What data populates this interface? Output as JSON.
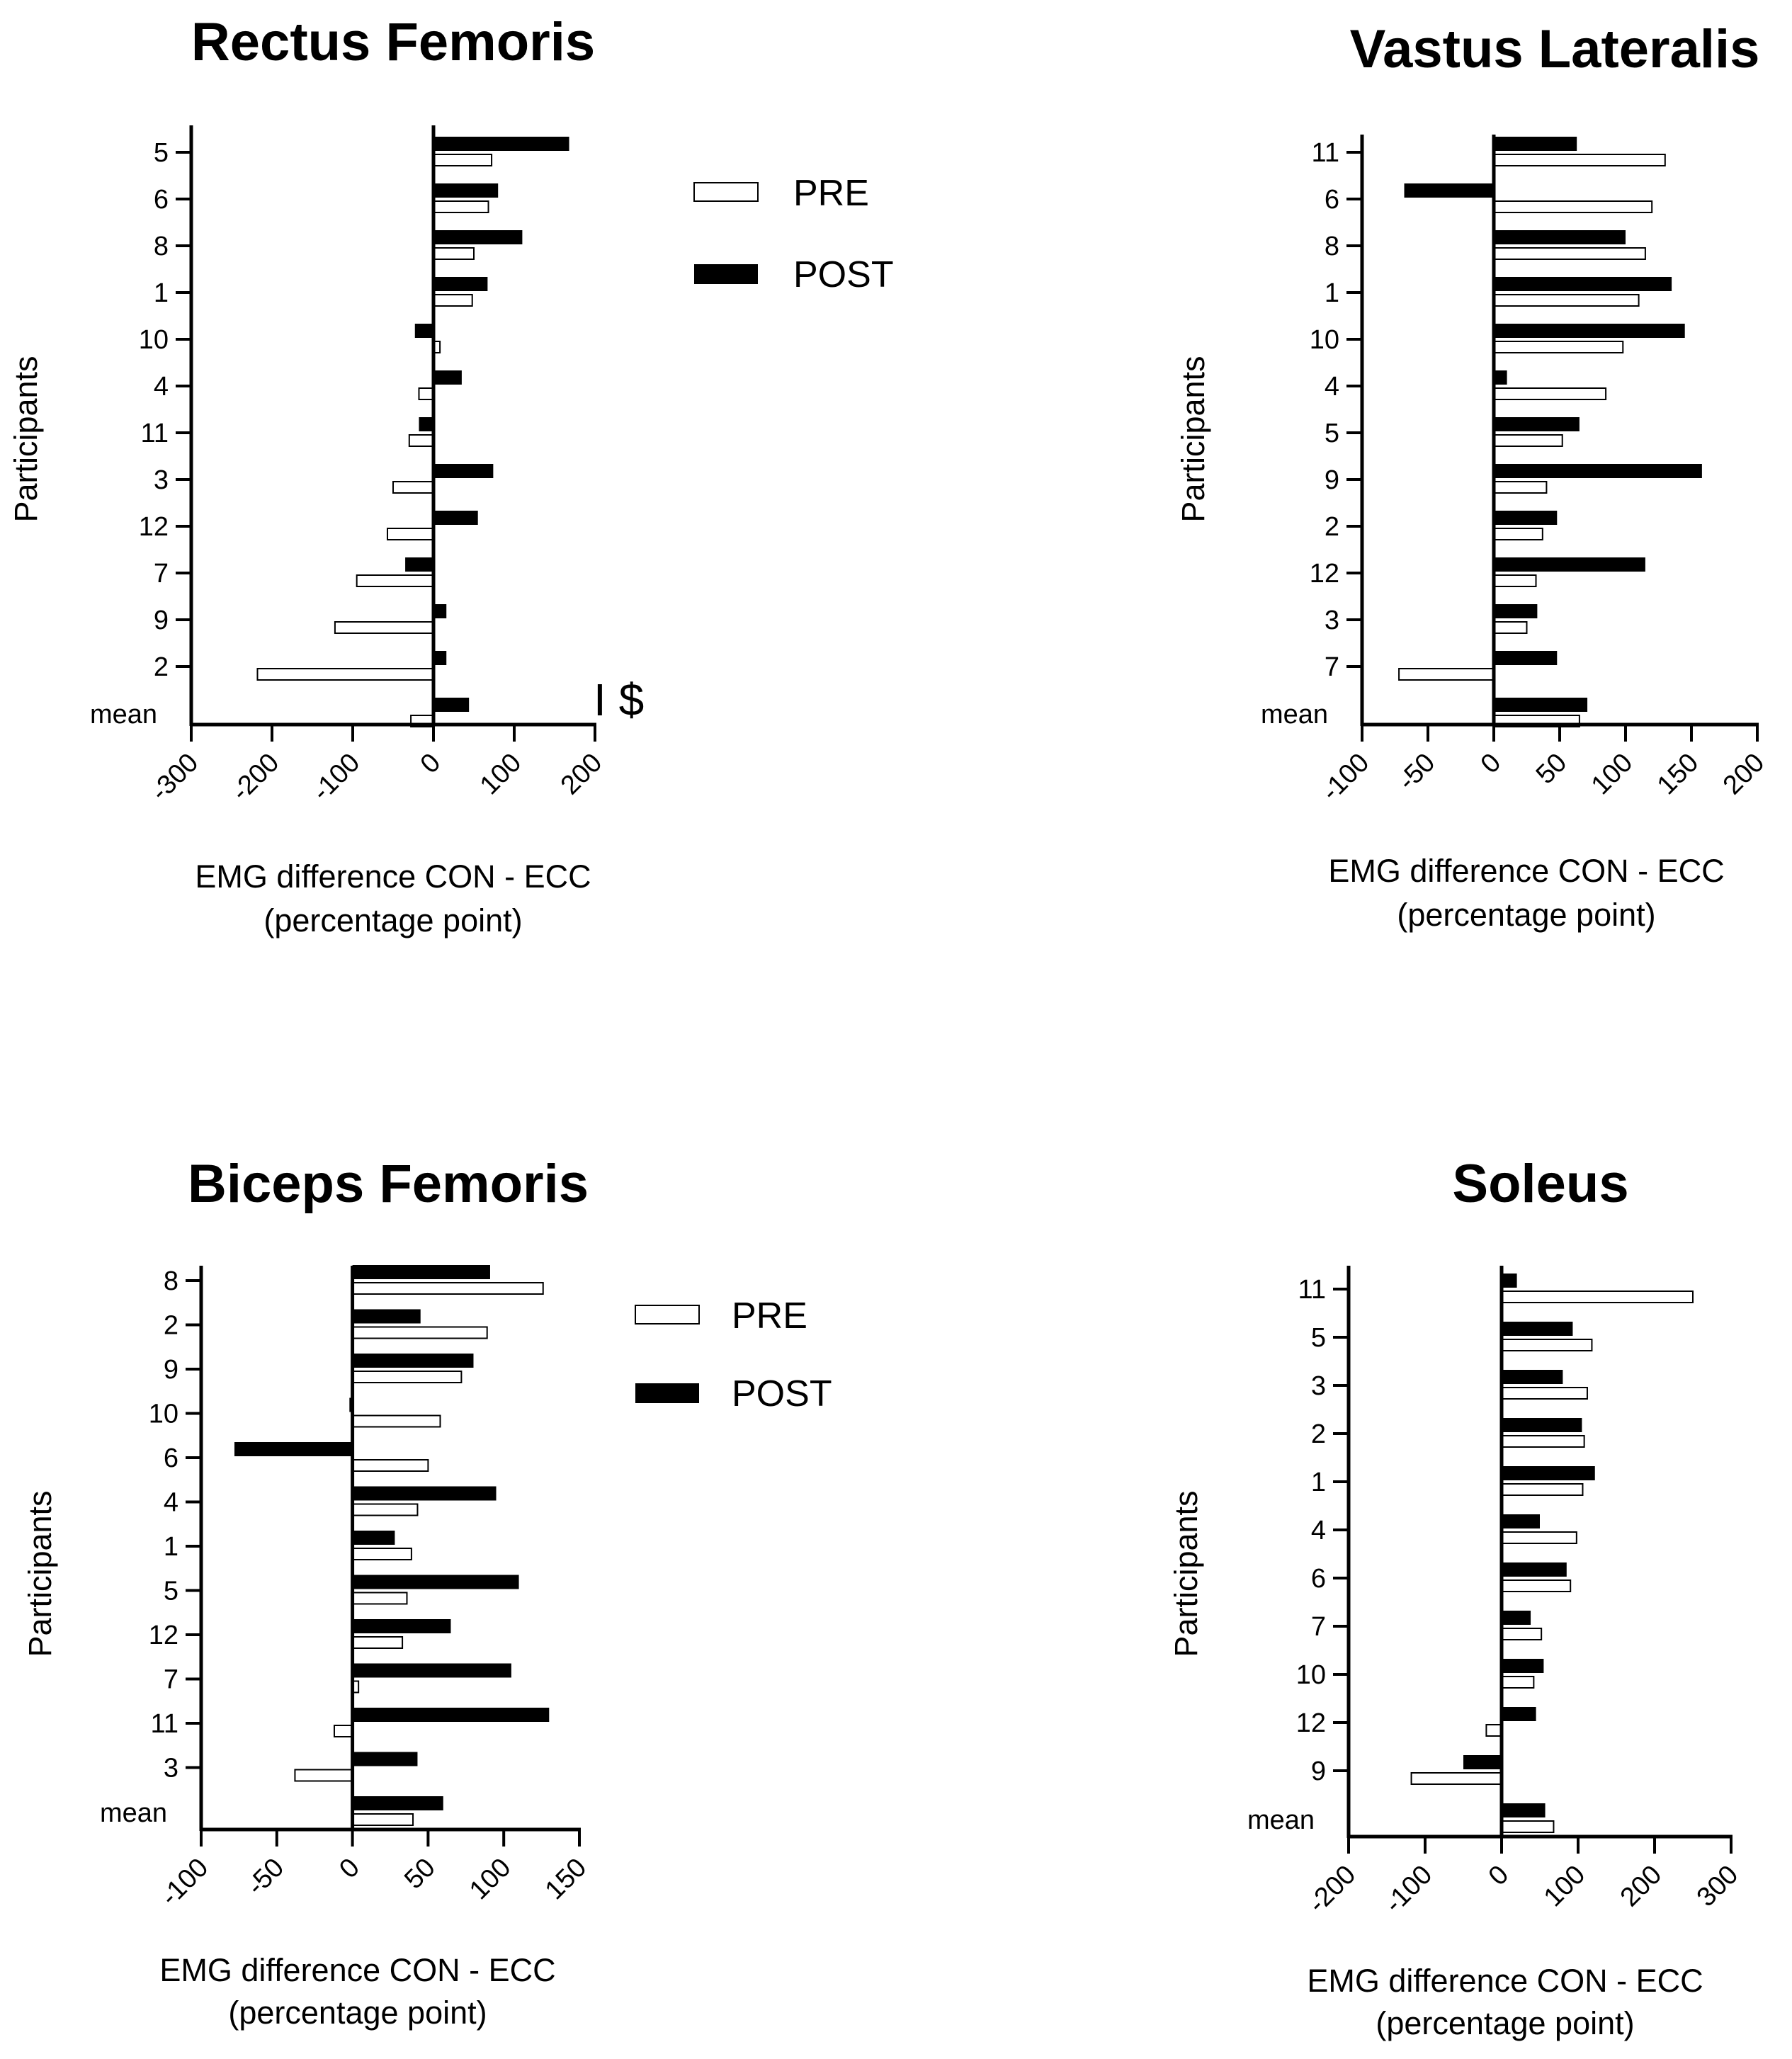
{
  "legend": {
    "pre": "PRE",
    "post": "POST"
  },
  "colors": {
    "pre_fill": "#ffffff",
    "post_fill": "#000000",
    "stroke": "#000000"
  },
  "chart_data": [
    {
      "type": "bar",
      "orientation": "horizontal",
      "title": "Rectus Femoris",
      "ylabel": "Participants",
      "xlabel": "EMG difference CON - ECC",
      "xlabel2": "(percentage point)",
      "xlim": [
        -300,
        200
      ],
      "xticks": [
        -300,
        -200,
        -100,
        0,
        100,
        200
      ],
      "categories": [
        "5",
        "6",
        "8",
        "1",
        "10",
        "4",
        "11",
        "3",
        "12",
        "7",
        "9",
        "2",
        "mean"
      ],
      "series": [
        {
          "name": "PRE",
          "values": [
            72,
            68,
            50,
            48,
            8,
            -18,
            -30,
            -50,
            -57,
            -95,
            -122,
            -218,
            -28
          ]
        },
        {
          "name": "POST",
          "values": [
            168,
            80,
            110,
            67,
            -23,
            35,
            -18,
            74,
            55,
            -35,
            16,
            16,
            44
          ]
        }
      ],
      "annotation": "I $",
      "legend_shown": true
    },
    {
      "type": "bar",
      "orientation": "horizontal",
      "title": "Vastus Lateralis",
      "ylabel": "Participants",
      "xlabel": "EMG difference CON - ECC",
      "xlabel2": "(percentage point)",
      "xlim": [
        -100,
        200
      ],
      "xticks": [
        -100,
        -50,
        0,
        50,
        100,
        150,
        200
      ],
      "categories": [
        "11",
        "6",
        "8",
        "1",
        "10",
        "4",
        "5",
        "9",
        "2",
        "12",
        "3",
        "7",
        "mean"
      ],
      "series": [
        {
          "name": "PRE",
          "values": [
            130,
            120,
            115,
            110,
            98,
            85,
            52,
            40,
            37,
            32,
            25,
            -72,
            65
          ]
        },
        {
          "name": "POST",
          "values": [
            63,
            -68,
            100,
            135,
            145,
            10,
            65,
            158,
            48,
            115,
            33,
            48,
            71
          ]
        }
      ],
      "legend_shown": false
    },
    {
      "type": "bar",
      "orientation": "horizontal",
      "title": "Biceps Femoris",
      "ylabel": "Participants",
      "xlabel": "EMG difference CON - ECC",
      "xlabel2": "(percentage point)",
      "xlim": [
        -100,
        150
      ],
      "xticks": [
        -100,
        -50,
        0,
        50,
        100,
        150
      ],
      "categories": [
        "8",
        "2",
        "9",
        "10",
        "6",
        "4",
        "1",
        "5",
        "12",
        "7",
        "11",
        "3",
        "mean"
      ],
      "series": [
        {
          "name": "PRE",
          "values": [
            126,
            89,
            72,
            58,
            50,
            43,
            39,
            36,
            33,
            4,
            -12,
            -38,
            40
          ]
        },
        {
          "name": "POST",
          "values": [
            91,
            45,
            80,
            -2,
            -78,
            95,
            28,
            110,
            65,
            105,
            130,
            43,
            60
          ]
        }
      ],
      "legend_shown": true
    },
    {
      "type": "bar",
      "orientation": "horizontal",
      "title": "Soleus",
      "ylabel": "Participants",
      "xlabel": "EMG difference CON - ECC",
      "xlabel2": "(percentage point)",
      "xlim": [
        -200,
        300
      ],
      "xticks": [
        -200,
        -100,
        0,
        100,
        200,
        300
      ],
      "categories": [
        "11",
        "5",
        "3",
        "2",
        "1",
        "4",
        "6",
        "7",
        "10",
        "12",
        "9",
        "mean"
      ],
      "series": [
        {
          "name": "PRE",
          "values": [
            250,
            118,
            112,
            108,
            106,
            98,
            90,
            52,
            42,
            -20,
            -118,
            68
          ]
        },
        {
          "name": "POST",
          "values": [
            20,
            93,
            80,
            105,
            122,
            50,
            85,
            38,
            55,
            45,
            -50,
            57
          ]
        }
      ],
      "legend_shown": false
    }
  ]
}
